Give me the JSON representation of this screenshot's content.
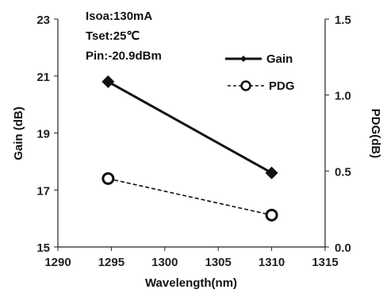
{
  "chart_data": {
    "type": "line",
    "xlabel": "Wavelength(nm)",
    "ylabel": "Gain (dB)",
    "y2label": "PDG(dB)",
    "xlim": [
      1290,
      1315
    ],
    "ylim": [
      15,
      23
    ],
    "y2lim": [
      0.0,
      1.5
    ],
    "xticks": [
      "1290",
      "1295",
      "1300",
      "1305",
      "1310",
      "1315"
    ],
    "yticks": [
      "15",
      "17",
      "19",
      "21",
      "23"
    ],
    "y2ticks": [
      "0.0",
      "0.5",
      "1.0",
      "1.5"
    ],
    "annotations": [
      "Isoa:130mA",
      "Tset:25℃",
      "Pin:-20.9dBm"
    ],
    "legend_position": "top-right",
    "series": [
      {
        "name": "Gain",
        "axis": "left",
        "style": "solid",
        "marker": "diamond",
        "x": [
          1294.7,
          1310.0
        ],
        "y": [
          20.8,
          17.6
        ]
      },
      {
        "name": "PDG",
        "axis": "right",
        "style": "dashed",
        "marker": "open-circle",
        "x": [
          1294.7,
          1310.0
        ],
        "y": [
          0.45,
          0.21
        ]
      }
    ]
  }
}
